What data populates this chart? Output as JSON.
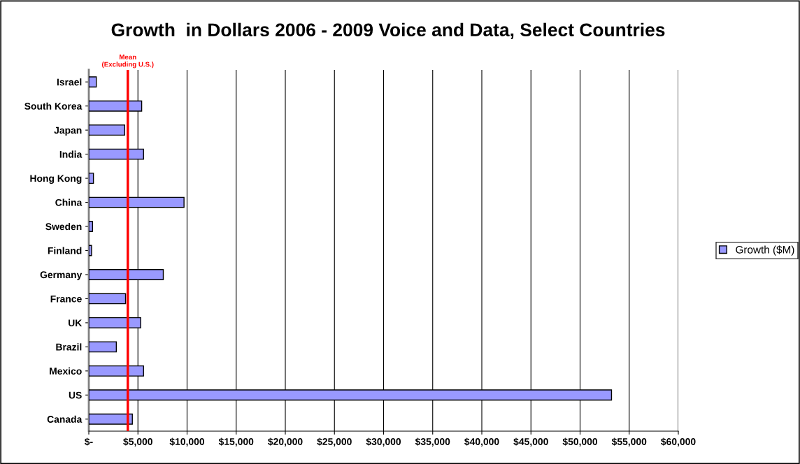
{
  "chart_data": {
    "type": "bar",
    "orientation": "horizontal",
    "title": "Growth  in Dollars 2006 - 2009 Voice and Data, Select Countries",
    "categories": [
      "Israel",
      "South Korea",
      "Japan",
      "India",
      "Hong Kong",
      "China",
      "Sweden",
      "Finland",
      "Germany",
      "France",
      "UK",
      "Brazil",
      "Mexico",
      "US",
      "Canada"
    ],
    "series": [
      {
        "name": "Growth ($M)",
        "color": "#9999ff",
        "values": [
          760,
          5380,
          3650,
          5570,
          470,
          9690,
          380,
          280,
          7580,
          3740,
          5280,
          2800,
          5570,
          53200,
          4430
        ]
      }
    ],
    "xlim": [
      0,
      60000
    ],
    "xticks": [
      {
        "value": 0,
        "label": "$-"
      },
      {
        "value": 5000,
        "label": "$5,000"
      },
      {
        "value": 10000,
        "label": "$10,000"
      },
      {
        "value": 15000,
        "label": "$15,000"
      },
      {
        "value": 20000,
        "label": "$20,000"
      },
      {
        "value": 25000,
        "label": "$25,000"
      },
      {
        "value": 30000,
        "label": "$30,000"
      },
      {
        "value": 35000,
        "label": "$35,000"
      },
      {
        "value": 40000,
        "label": "$40,000"
      },
      {
        "value": 45000,
        "label": "$45,000"
      },
      {
        "value": 50000,
        "label": "$50,000"
      },
      {
        "value": 55000,
        "label": "$55,000"
      },
      {
        "value": 60000,
        "label": "$60,000"
      }
    ],
    "ref_lines": [
      {
        "axis": "x",
        "value": 3970,
        "label": "Mean\n(Excluding U.S.)",
        "color": "#ff0000"
      }
    ],
    "grid": "x",
    "legend": "right"
  }
}
